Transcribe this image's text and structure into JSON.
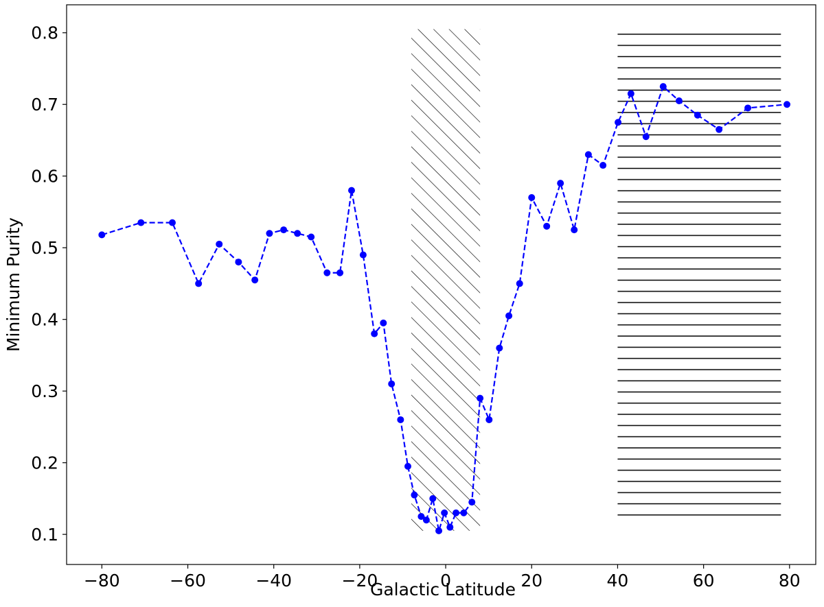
{
  "chart_data": {
    "type": "line",
    "xlabel": "Galactic Latitude",
    "ylabel": "Minimum Purity",
    "x": [
      -80,
      -70.9,
      -63.6,
      -57.5,
      -52.7,
      -48.2,
      -44.4,
      -41.0,
      -37.7,
      -34.5,
      -31.3,
      -27.6,
      -24.6,
      -21.9,
      -19.2,
      -16.6,
      -14.5,
      -12.6,
      -10.5,
      -8.8,
      -7.3,
      -5.7,
      -4.5,
      -3.0,
      -1.6,
      -0.3,
      1.0,
      2.4,
      4.2,
      6.1,
      8.0,
      10.1,
      12.5,
      14.7,
      17.2,
      20.0,
      23.5,
      26.7,
      29.9,
      33.2,
      36.6,
      40.1,
      43.1,
      46.6,
      50.6,
      54.3,
      58.6,
      63.6,
      70.3,
      79.4
    ],
    "series": [
      {
        "color": "#0000ff",
        "values": [
          0.518,
          0.535,
          0.535,
          0.45,
          0.505,
          0.48,
          0.455,
          0.52,
          0.525,
          0.52,
          0.515,
          0.465,
          0.465,
          0.58,
          0.49,
          0.38,
          0.395,
          0.31,
          0.26,
          0.195,
          0.155,
          0.125,
          0.12,
          0.15,
          0.105,
          0.13,
          0.11,
          0.13,
          0.13,
          0.145,
          0.29,
          0.26,
          0.36,
          0.405,
          0.45,
          0.57,
          0.53,
          0.59,
          0.525,
          0.63,
          0.615,
          0.675,
          0.715,
          0.655,
          0.725,
          0.705,
          0.685,
          0.665,
          0.695,
          0.7
        ]
      }
    ],
    "regions": [
      {
        "x": [
          -8,
          8
        ],
        "y": [
          0.105,
          0.805
        ],
        "hatch": "diagonal"
      },
      {
        "x": [
          40,
          78
        ],
        "y": [
          0.113,
          0.8
        ],
        "hatch": "horizontal"
      }
    ],
    "xlim": [
      -88.2,
      86.1
    ],
    "ylim": [
      0.058,
      0.839
    ],
    "xticks": [
      {
        "value": -80,
        "label": "−80"
      },
      {
        "value": -60,
        "label": "−60"
      },
      {
        "value": -40,
        "label": "−40"
      },
      {
        "value": -20,
        "label": "−20"
      },
      0,
      20,
      40,
      60,
      80
    ],
    "yticks": [
      0.1,
      0.2,
      0.3,
      0.4,
      0.5,
      0.6,
      0.7,
      0.8
    ]
  }
}
